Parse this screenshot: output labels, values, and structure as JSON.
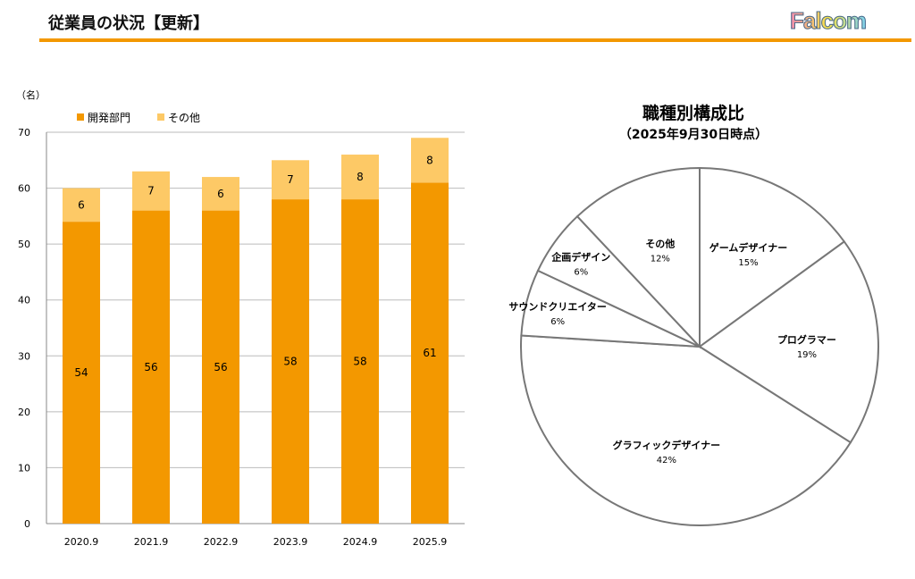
{
  "header": {
    "title": "従業員の状況【更新】",
    "logo": "Falcom"
  },
  "chart_data": [
    {
      "type": "bar",
      "stacked": true,
      "unit_label": "（名）",
      "categories": [
        "2020.9",
        "2021.9",
        "2022.9",
        "2023.9",
        "2024.9",
        "2025.9"
      ],
      "series": [
        {
          "name": "開発部門",
          "color": "#f39800",
          "values": [
            54,
            56,
            56,
            58,
            58,
            61
          ]
        },
        {
          "name": "その他",
          "color": "#fdc966",
          "values": [
            6,
            7,
            6,
            7,
            8,
            8
          ]
        }
      ],
      "ylim": [
        0,
        70
      ],
      "yticks": [
        0,
        10,
        20,
        30,
        40,
        50,
        60,
        70
      ],
      "grid": true,
      "legend": "top-left"
    },
    {
      "type": "pie",
      "title": "職種別構成比",
      "subtitle": "（2025年9月30日時点）",
      "slices": [
        {
          "label": "ゲームデザイナー",
          "value": 15
        },
        {
          "label": "プログラマー",
          "value": 19
        },
        {
          "label": "グラフィックデザイナー",
          "value": 42
        },
        {
          "label": "サウンドクリエイター",
          "value": 6
        },
        {
          "label": "企画デザイン",
          "value": 6
        },
        {
          "label": "その他",
          "value": 12
        }
      ]
    }
  ]
}
